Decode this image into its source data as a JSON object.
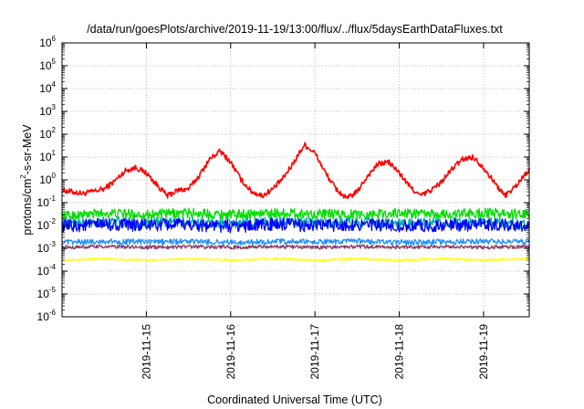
{
  "chart_data": {
    "type": "line",
    "title": "/data/run/goesPlots/archive/2019-11-19/13:00/flux/../flux/5daysEarthDataFluxes.txt",
    "xlabel": "Coordinated Universal Time (UTC)",
    "ylabel": {
      "prefix": "protons/cm",
      "sup": "2",
      "suffix": "-s-sr-MeV"
    },
    "y_scale": "log",
    "ylim": [
      1e-06,
      1000000.0
    ],
    "y_ticks": [
      {
        "base": "10",
        "exp": "-6"
      },
      {
        "base": "10",
        "exp": "-5"
      },
      {
        "base": "10",
        "exp": "-4"
      },
      {
        "base": "10",
        "exp": "-3"
      },
      {
        "base": "10",
        "exp": "-2"
      },
      {
        "base": "10",
        "exp": "-1"
      },
      {
        "base": "10",
        "exp": "0"
      },
      {
        "base": "10",
        "exp": "1"
      },
      {
        "base": "10",
        "exp": "2"
      },
      {
        "base": "10",
        "exp": "3"
      },
      {
        "base": "10",
        "exp": "4"
      },
      {
        "base": "10",
        "exp": "5"
      },
      {
        "base": "10",
        "exp": "6"
      }
    ],
    "xlim": [
      "2019-11-14 00:00",
      "2019-11-19 13:00"
    ],
    "x_ticks": [
      "2019-11-15",
      "2019-11-16",
      "2019-11-17",
      "2019-11-18",
      "2019-11-19"
    ],
    "grid": true,
    "series": [
      {
        "color": "#ff0000",
        "x": [
          "2019-11-14 00:00",
          "2019-11-14 06:00",
          "2019-11-14 12:00",
          "2019-11-14 15:00",
          "2019-11-14 18:00",
          "2019-11-14 21:00",
          "2019-11-15 00:00",
          "2019-11-15 03:00",
          "2019-11-15 06:00",
          "2019-11-15 09:00",
          "2019-11-15 12:00",
          "2019-11-15 15:00",
          "2019-11-15 18:00",
          "2019-11-15 21:00",
          "2019-11-16 00:00",
          "2019-11-16 03:00",
          "2019-11-16 06:00",
          "2019-11-16 09:00",
          "2019-11-16 12:00",
          "2019-11-16 15:00",
          "2019-11-16 18:00",
          "2019-11-16 21:00",
          "2019-11-17 00:00",
          "2019-11-17 03:00",
          "2019-11-17 06:00",
          "2019-11-17 09:00",
          "2019-11-17 12:00",
          "2019-11-17 15:00",
          "2019-11-17 18:00",
          "2019-11-17 21:00",
          "2019-11-18 00:00",
          "2019-11-18 03:00",
          "2019-11-18 06:00",
          "2019-11-18 09:00",
          "2019-11-18 12:00",
          "2019-11-18 15:00",
          "2019-11-18 18:00",
          "2019-11-18 21:00",
          "2019-11-19 00:00",
          "2019-11-19 03:00",
          "2019-11-19 06:00",
          "2019-11-19 09:00",
          "2019-11-19 13:00"
        ],
        "values": [
          0.35,
          0.25,
          0.4,
          0.9,
          2.5,
          3.5,
          2.0,
          0.6,
          0.2,
          0.35,
          0.4,
          1.5,
          8,
          18,
          6,
          1.0,
          0.3,
          0.2,
          0.4,
          1.2,
          6,
          35,
          15,
          2.0,
          0.4,
          0.15,
          0.3,
          1.5,
          5,
          6,
          2.0,
          0.5,
          0.2,
          0.35,
          0.8,
          3,
          8,
          10,
          3.5,
          0.8,
          0.2,
          0.5,
          3
        ]
      },
      {
        "color": "#00dd00",
        "x": [
          "2019-11-14 00:00",
          "2019-11-14 12:00",
          "2019-11-15 00:00",
          "2019-11-15 12:00",
          "2019-11-16 00:00",
          "2019-11-16 12:00",
          "2019-11-17 00:00",
          "2019-11-17 12:00",
          "2019-11-18 00:00",
          "2019-11-18 12:00",
          "2019-11-19 00:00",
          "2019-11-19 13:00"
        ],
        "values": [
          0.025,
          0.035,
          0.03,
          0.035,
          0.03,
          0.035,
          0.032,
          0.03,
          0.035,
          0.03,
          0.035,
          0.03
        ]
      },
      {
        "color": "#00aaaa",
        "x": [
          "2019-11-14 00:00",
          "2019-11-14 12:00",
          "2019-11-15 00:00",
          "2019-11-15 12:00",
          "2019-11-16 00:00",
          "2019-11-16 12:00",
          "2019-11-17 00:00",
          "2019-11-17 12:00",
          "2019-11-18 00:00",
          "2019-11-18 12:00",
          "2019-11-19 00:00",
          "2019-11-19 13:00"
        ],
        "values": [
          0.012,
          0.015,
          0.013,
          0.014,
          0.012,
          0.015,
          0.013,
          0.014,
          0.012,
          0.013,
          0.014,
          0.012
        ]
      },
      {
        "color": "#0000ff",
        "x": [
          "2019-11-14 00:00",
          "2019-11-14 12:00",
          "2019-11-15 00:00",
          "2019-11-15 12:00",
          "2019-11-16 00:00",
          "2019-11-16 12:00",
          "2019-11-17 00:00",
          "2019-11-17 12:00",
          "2019-11-18 00:00",
          "2019-11-18 12:00",
          "2019-11-19 00:00",
          "2019-11-19 13:00"
        ],
        "values": [
          0.009,
          0.011,
          0.01,
          0.011,
          0.009,
          0.011,
          0.01,
          0.011,
          0.009,
          0.01,
          0.011,
          0.01
        ]
      },
      {
        "color": "#1e90ff",
        "x": [
          "2019-11-14 00:00",
          "2019-11-14 12:00",
          "2019-11-15 00:00",
          "2019-11-15 12:00",
          "2019-11-16 00:00",
          "2019-11-16 12:00",
          "2019-11-17 00:00",
          "2019-11-17 12:00",
          "2019-11-18 00:00",
          "2019-11-18 12:00",
          "2019-11-19 00:00",
          "2019-11-19 13:00"
        ],
        "values": [
          0.0018,
          0.002,
          0.0019,
          0.002,
          0.0018,
          0.002,
          0.0019,
          0.002,
          0.0018,
          0.0019,
          0.002,
          0.0019
        ]
      },
      {
        "color": "#8b3a62",
        "x": [
          "2019-11-14 00:00",
          "2019-11-14 12:00",
          "2019-11-15 00:00",
          "2019-11-15 12:00",
          "2019-11-16 00:00",
          "2019-11-16 12:00",
          "2019-11-17 00:00",
          "2019-11-17 12:00",
          "2019-11-18 00:00",
          "2019-11-18 12:00",
          "2019-11-19 00:00",
          "2019-11-19 13:00"
        ],
        "values": [
          0.0011,
          0.0012,
          0.0011,
          0.0012,
          0.0011,
          0.0012,
          0.0011,
          0.0012,
          0.0011,
          0.0012,
          0.0011,
          0.0012
        ]
      },
      {
        "color": "#ffff00",
        "x": [
          "2019-11-14 00:00",
          "2019-11-14 12:00",
          "2019-11-15 00:00",
          "2019-11-15 12:00",
          "2019-11-16 00:00",
          "2019-11-16 12:00",
          "2019-11-17 00:00",
          "2019-11-17 12:00",
          "2019-11-18 00:00",
          "2019-11-18 12:00",
          "2019-11-19 00:00",
          "2019-11-19 13:00"
        ],
        "values": [
          0.0003,
          0.00035,
          0.0003,
          0.00035,
          0.0003,
          0.00035,
          0.0003,
          0.00035,
          0.0003,
          0.00035,
          0.0003,
          0.00035
        ]
      }
    ]
  }
}
